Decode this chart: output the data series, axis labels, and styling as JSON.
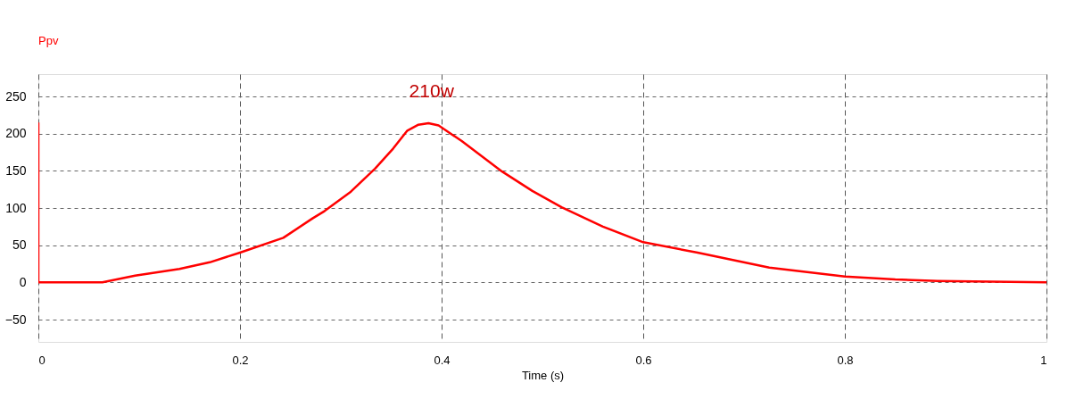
{
  "chart_data": {
    "type": "line",
    "xlabel": "Time (s)",
    "x": [
      0,
      0,
      0.0635,
      0.096,
      0.14,
      0.17,
      0.2,
      0.243,
      0.272,
      0.284,
      0.31,
      0.334,
      0.352,
      0.366,
      0.377,
      0.387,
      0.397,
      0.42,
      0.46,
      0.49,
      0.519,
      0.56,
      0.6,
      0.654,
      0.725,
      0.8,
      0.85,
      0.892,
      1
    ],
    "series": [
      {
        "name": "Ppv",
        "color": "#ff0000",
        "values": [
          215,
          0,
          0,
          9,
          18,
          27,
          40,
          60,
          86,
          96,
          122,
          153,
          180,
          204,
          212,
          214,
          211,
          190,
          149,
          123,
          101,
          75,
          54,
          40,
          20,
          8,
          4,
          2,
          0
        ]
      }
    ],
    "annotations": [
      "210w"
    ],
    "xlim": [
      0,
      1
    ],
    "xticks": [
      0,
      0.2,
      0.4,
      0.6,
      0.8,
      1
    ],
    "ylim": [
      -80,
      280
    ],
    "yticks": [
      -50,
      0,
      50,
      100,
      150,
      200,
      250
    ],
    "grid": true,
    "marker": "none",
    "line_style": "solid",
    "legend": "top left"
  }
}
